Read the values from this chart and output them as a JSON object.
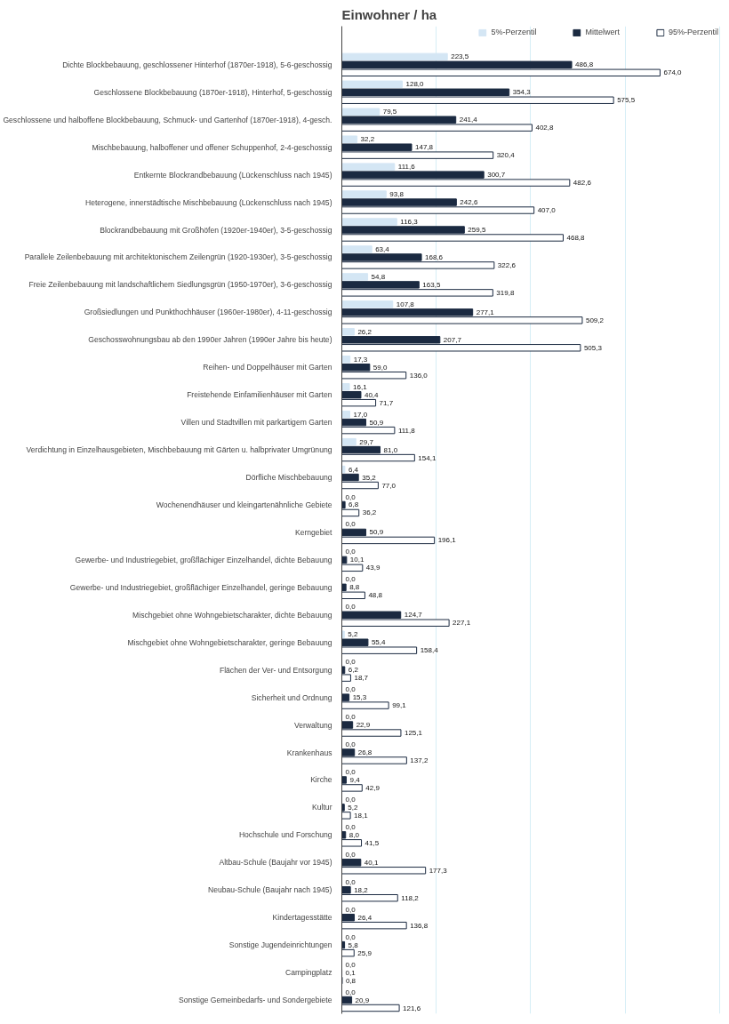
{
  "chart_data": {
    "type": "bar",
    "orientation": "horizontal",
    "title": "Einwohner / ha",
    "categories": [
      "Dichte Blockbebauung, geschlossener Hinterhof (1870er-1918), 5-6-geschossig",
      "Geschlossene Blockbebauung (1870er-1918), Hinterhof, 5-geschossig",
      "Geschlossene und halboffene Blockbebauung, Schmuck- und Gartenhof (1870er-1918), 4-gesch.",
      "Mischbebauung, halboffener und offener Schuppenhof, 2-4-geschossig",
      "Entkernte Blockrandbebauung (Lückenschluss nach 1945)",
      "Heterogene, innerstädtische Mischbebauung (Lückenschluss nach 1945)",
      "Blockrandbebauung mit Großhöfen (1920er-1940er), 3-5-geschossig",
      "Parallele Zeilenbebauung mit architektonischem Zeilengrün (1920-1930er), 3-5-geschossig",
      "Freie Zeilenbebauung mit landschaftlichem Siedlungsgrün (1950-1970er), 3-6-geschossig",
      "Großsiedlungen und Punkthochhäuser (1960er-1980er), 4-11-geschossig",
      "Geschosswohnungsbau ab den 1990er Jahren (1990er Jahre bis heute)",
      "Reihen- und Doppelhäuser mit Garten",
      "Freistehende Einfamilienhäuser mit Garten",
      "Villen und Stadtvillen mit parkartigem Garten",
      "Verdichtung in Einzelhausgebieten, Mischbebauung mit Gärten u. halbprivater Umgrünung",
      "Dörfliche Mischbebauung",
      "Wochenendhäuser und kleingartenähnliche Gebiete",
      "Kerngebiet",
      "Gewerbe- und Industriegebiet, großflächiger Einzelhandel, dichte Bebauung",
      "Gewerbe- und Industriegebiet, großflächiger Einzelhandel, geringe Bebauung",
      "Mischgebiet ohne Wohngebietscharakter, dichte Bebauung",
      "Mischgebiet ohne Wohngebietscharakter, geringe Bebauung",
      "Flächen der Ver- und Entsorgung",
      "Sicherheit und Ordnung",
      "Verwaltung",
      "Krankenhaus",
      "Kirche",
      "Kultur",
      "Hochschule und Forschung",
      "Altbau-Schule (Baujahr vor 1945)",
      "Neubau-Schule (Baujahr nach 1945)",
      "Kindertagesstätte",
      "Sonstige Jugendeinrichtungen",
      "Campingplatz",
      "Sonstige Gemeinbedarfs- und Sondergebiete"
    ],
    "series": [
      {
        "name": "5%-Perzentil",
        "color": "#d4e6f4",
        "values": [
          223.5,
          128.0,
          79.5,
          32.2,
          111.6,
          93.8,
          116.3,
          63.4,
          54.8,
          107.8,
          26.2,
          17.3,
          16.1,
          17.0,
          29.7,
          6.4,
          0.0,
          0.0,
          0.0,
          0.0,
          0.0,
          5.2,
          0.0,
          0.0,
          0.0,
          0.0,
          0.0,
          0.0,
          0.0,
          0.0,
          0.0,
          0.0,
          0.0,
          0.0,
          0.0
        ],
        "value_labels": [
          "223,5",
          "128,0",
          "79,5",
          "32,2",
          "111,6",
          "93,8",
          "116,3",
          "63,4",
          "54,8",
          "107,8",
          "26,2",
          "17,3",
          "16,1",
          "17,0",
          "29,7",
          "6,4",
          "0,0",
          "0,0",
          "0,0",
          "0,0",
          "0,0",
          "5,2",
          "0,0",
          "0,0",
          "0,0",
          "0,0",
          "0,0",
          "0,0",
          "0,0",
          "0,0",
          "0,0",
          "0,0",
          "0,0",
          "0,0",
          "0,0"
        ]
      },
      {
        "name": "Mittelwert",
        "color": "#1b2a41",
        "values": [
          486.8,
          354.3,
          241.4,
          147.8,
          300.7,
          242.6,
          259.5,
          168.6,
          163.5,
          277.1,
          207.7,
          59.0,
          40.4,
          50.9,
          81.0,
          35.2,
          6.8,
          50.9,
          10.1,
          8.8,
          124.7,
          55.4,
          6.2,
          15.3,
          22.9,
          26.8,
          9.4,
          5.2,
          8.0,
          40.1,
          18.2,
          26.4,
          5.8,
          0.1,
          20.9
        ],
        "value_labels": [
          "486,8",
          "354,3",
          "241,4",
          "147,8",
          "300,7",
          "242,6",
          "259,5",
          "168,6",
          "163,5",
          "277,1",
          "207,7",
          "59,0",
          "40,4",
          "50,9",
          "81,0",
          "35,2",
          "6,8",
          "50,9",
          "10,1",
          "8,8",
          "124,7",
          "55,4",
          "6,2",
          "15,3",
          "22,9",
          "26,8",
          "9,4",
          "5,2",
          "8,0",
          "40,1",
          "18,2",
          "26,4",
          "5,8",
          "0,1",
          "20,9"
        ]
      },
      {
        "name": "95%-Perzentil",
        "color": "#ffffff",
        "values": [
          674.0,
          575.5,
          402.8,
          320.4,
          482.6,
          407.0,
          468.8,
          322.6,
          319.8,
          509.2,
          505.3,
          136.0,
          71.7,
          111.8,
          154.1,
          77.0,
          36.2,
          196.1,
          43.9,
          48.8,
          227.1,
          158.4,
          18.7,
          99.1,
          125.1,
          137.2,
          42.9,
          18.1,
          41.5,
          177.3,
          118.2,
          136.8,
          25.9,
          0.8,
          121.6
        ],
        "value_labels": [
          "674,0",
          "575,5",
          "402,8",
          "320,4",
          "482,6",
          "407,0",
          "468,8",
          "322,6",
          "319,8",
          "509,2",
          "505,3",
          "136,0",
          "71,7",
          "111,8",
          "154,1",
          "77,0",
          "36,2",
          "196,1",
          "43,9",
          "48,8",
          "227,1",
          "158,4",
          "18,7",
          "99,1",
          "125,1",
          "137,2",
          "42,9",
          "18,1",
          "41,5",
          "177,3",
          "118,2",
          "136,8",
          "25,9",
          "0,8",
          "121,6"
        ]
      }
    ],
    "tick_labels": "y",
    "grid": "x",
    "legend": "top"
  }
}
